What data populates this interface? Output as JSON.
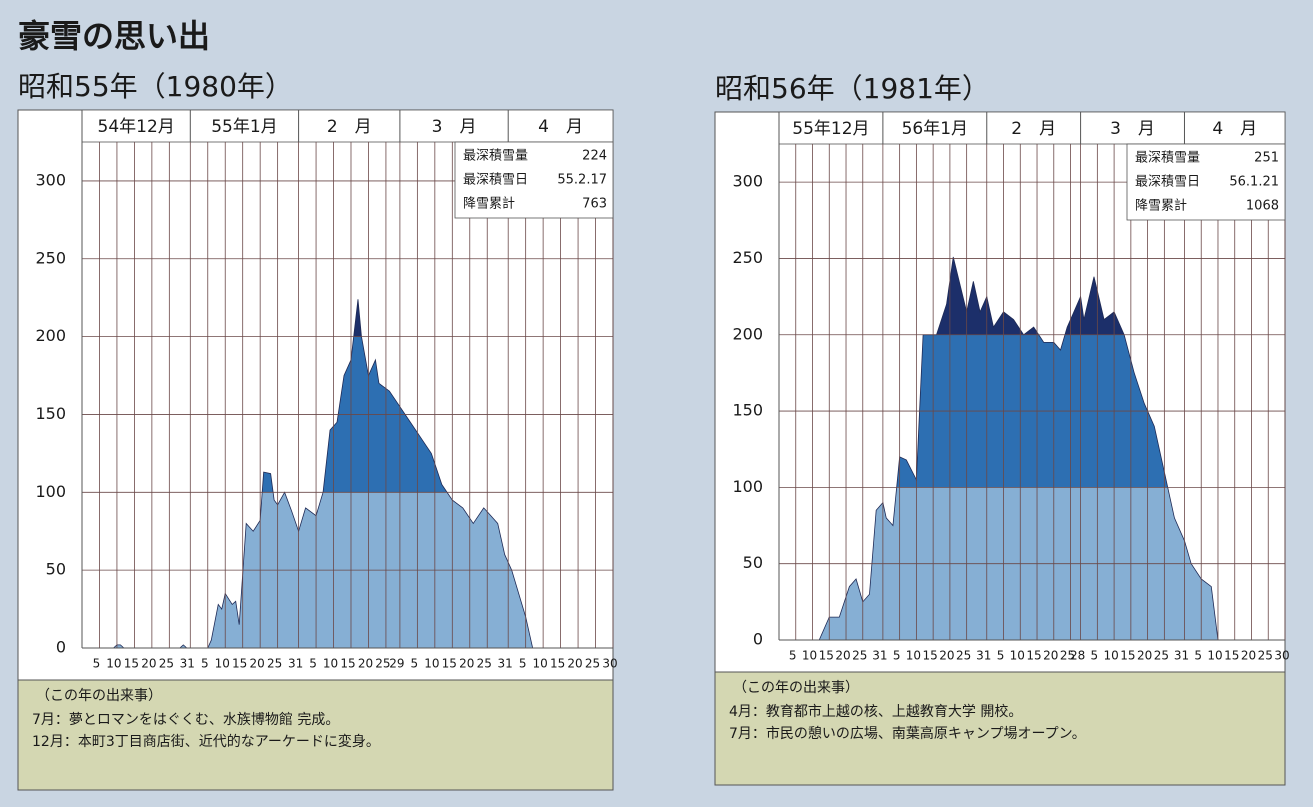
{
  "page_title": "豪雪の思い出",
  "chart_data": [
    {
      "type": "area",
      "title": "昭和55年（1980年）",
      "ylim": [
        0,
        325
      ],
      "yticks": [
        0,
        50,
        100,
        150,
        200,
        250,
        300
      ],
      "grid": true,
      "band_limits": [
        100,
        200
      ],
      "band_colors": [
        "#86afd4",
        "#2d6fb2",
        "#1c2f6a"
      ],
      "months": [
        {
          "label": "54年12月",
          "xticks": [
            5,
            10,
            15,
            20,
            25,
            31
          ],
          "days": [
            1,
            9,
            10,
            11,
            12,
            28,
            29,
            30,
            31
          ],
          "values": [
            0,
            0,
            2,
            2,
            0,
            0,
            2,
            0,
            0
          ]
        },
        {
          "label": "55年1月",
          "xticks": [
            5,
            10,
            15,
            20,
            25,
            31
          ],
          "days": [
            5,
            6,
            8,
            9,
            10,
            12,
            13,
            14,
            16,
            18,
            20,
            21,
            23,
            24,
            25,
            27,
            29,
            31
          ],
          "values": [
            0,
            5,
            28,
            25,
            35,
            28,
            30,
            15,
            80,
            75,
            82,
            113,
            112,
            95,
            92,
            100,
            88,
            75
          ]
        },
        {
          "label": "2　月",
          "xticks": [
            5,
            10,
            15,
            20,
            25,
            29
          ],
          "days": [
            2,
            5,
            7,
            9,
            11,
            13,
            15,
            17,
            18,
            20,
            22,
            23,
            26,
            29
          ],
          "values": [
            90,
            85,
            100,
            140,
            145,
            175,
            185,
            224,
            200,
            175,
            185,
            170,
            165,
            155
          ]
        },
        {
          "label": "3　月",
          "xticks": [
            5,
            10,
            15,
            20,
            25,
            31
          ],
          "days": [
            3,
            6,
            9,
            12,
            15,
            18,
            21,
            24,
            26,
            28,
            30
          ],
          "values": [
            145,
            135,
            125,
            105,
            95,
            90,
            80,
            90,
            85,
            80,
            60
          ]
        },
        {
          "label": "4　月",
          "xticks": [
            5,
            10,
            15,
            20,
            25,
            30
          ],
          "days": [
            1,
            3,
            5,
            7
          ],
          "values": [
            50,
            35,
            20,
            0
          ]
        }
      ],
      "stats": [
        {
          "label": "最深積雪量",
          "value": 224
        },
        {
          "label": "最深積雪日",
          "value": "55.2.17"
        },
        {
          "label": "降雪累計",
          "value": 763
        }
      ],
      "events_heading": "（この年の出来事）",
      "events": [
        "7月：夢とロマンをはぐくむ、水族博物館 完成。",
        "12月：本町3丁目商店街、近代的なアーケードに変身。"
      ]
    },
    {
      "type": "area",
      "title": "昭和56年（1981年）",
      "ylim": [
        0,
        325
      ],
      "yticks": [
        0,
        50,
        100,
        150,
        200,
        250,
        300
      ],
      "grid": true,
      "band_limits": [
        100,
        200
      ],
      "band_colors": [
        "#86afd4",
        "#2d6fb2",
        "#1c2f6a"
      ],
      "months": [
        {
          "label": "55年12月",
          "xticks": [
            5,
            10,
            15,
            20,
            25,
            31
          ],
          "days": [
            12,
            15,
            18,
            21,
            23,
            25,
            27,
            29,
            31
          ],
          "values": [
            0,
            15,
            15,
            35,
            40,
            25,
            30,
            85,
            90
          ]
        },
        {
          "label": "56年1月",
          "xticks": [
            5,
            10,
            15,
            20,
            25,
            31
          ],
          "days": [
            1,
            3,
            5,
            7,
            10,
            12,
            16,
            19,
            21,
            25,
            27,
            29,
            31
          ],
          "values": [
            80,
            75,
            120,
            118,
            105,
            200,
            200,
            220,
            251,
            215,
            235,
            215,
            225
          ]
        },
        {
          "label": "2　月",
          "xticks": [
            5,
            10,
            15,
            20,
            25,
            28
          ],
          "days": [
            2,
            5,
            8,
            11,
            14,
            17,
            20,
            22,
            24,
            26,
            28
          ],
          "values": [
            205,
            215,
            210,
            200,
            205,
            195,
            195,
            190,
            205,
            215,
            225
          ]
        },
        {
          "label": "3　月",
          "xticks": [
            5,
            10,
            15,
            20,
            25,
            31
          ],
          "days": [
            1,
            4,
            7,
            10,
            13,
            16,
            19,
            22,
            25,
            28,
            31
          ],
          "values": [
            210,
            238,
            210,
            215,
            200,
            175,
            155,
            140,
            110,
            80,
            65
          ]
        },
        {
          "label": "4　月",
          "xticks": [
            5,
            10,
            15,
            20,
            25,
            30
          ],
          "days": [
            2,
            5,
            8,
            10
          ],
          "values": [
            50,
            40,
            35,
            0
          ]
        }
      ],
      "stats": [
        {
          "label": "最深積雪量",
          "value": 251
        },
        {
          "label": "最深積雪日",
          "value": "56.1.21"
        },
        {
          "label": "降雪累計",
          "value": 1068
        }
      ],
      "events_heading": "（この年の出来事）",
      "events": [
        "4月：教育都市上越の核、上越教育大学 開校。",
        "7月：市民の憩いの広場、南葉高原キャンプ場オープン。"
      ]
    }
  ]
}
